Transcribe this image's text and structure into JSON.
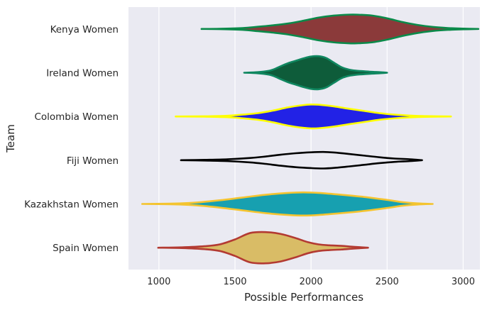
{
  "chart_data": {
    "type": "violin",
    "orientation": "horizontal",
    "xlabel": "Possible Performances",
    "ylabel": "Team",
    "xlim": [
      800,
      3110
    ],
    "xticks": [
      1000,
      1500,
      2000,
      2500,
      3000
    ],
    "grid": true,
    "background": "#eaeaf2",
    "categories": [
      "Kenya Women",
      "Ireland Women",
      "Colombia Women",
      "Fiji Women",
      "Kazakhstan Women",
      "Spain Women"
    ],
    "series": [
      {
        "name": "Kenya Women",
        "fill": "#8b3a3a",
        "stroke": "#0b8a4a",
        "profile": [
          [
            1280,
            0.0
          ],
          [
            1400,
            0.01
          ],
          [
            1550,
            0.05
          ],
          [
            1650,
            0.12
          ],
          [
            1750,
            0.2
          ],
          [
            1850,
            0.3
          ],
          [
            1950,
            0.45
          ],
          [
            2050,
            0.62
          ],
          [
            2150,
            0.73
          ],
          [
            2250,
            0.78
          ],
          [
            2300,
            0.78
          ],
          [
            2400,
            0.73
          ],
          [
            2500,
            0.58
          ],
          [
            2600,
            0.38
          ],
          [
            2700,
            0.22
          ],
          [
            2800,
            0.11
          ],
          [
            2900,
            0.05
          ],
          [
            3000,
            0.02
          ],
          [
            3100,
            0.0
          ]
        ]
      },
      {
        "name": "Ireland Women",
        "fill": "#0e5c3a",
        "stroke": "#108760",
        "profile": [
          [
            1560,
            0.0
          ],
          [
            1650,
            0.03
          ],
          [
            1720,
            0.1
          ],
          [
            1760,
            0.2
          ],
          [
            1800,
            0.35
          ],
          [
            1850,
            0.52
          ],
          [
            1900,
            0.65
          ],
          [
            1950,
            0.78
          ],
          [
            2000,
            0.88
          ],
          [
            2050,
            0.9
          ],
          [
            2100,
            0.8
          ],
          [
            2150,
            0.55
          ],
          [
            2200,
            0.3
          ],
          [
            2250,
            0.17
          ],
          [
            2300,
            0.11
          ],
          [
            2350,
            0.08
          ],
          [
            2400,
            0.05
          ],
          [
            2450,
            0.03
          ],
          [
            2500,
            0.0
          ]
        ]
      },
      {
        "name": "Colombia Women",
        "fill": "#2222e6",
        "stroke": "#ffff00",
        "profile": [
          [
            1110,
            0.0
          ],
          [
            1300,
            0.01
          ],
          [
            1450,
            0.04
          ],
          [
            1550,
            0.1
          ],
          [
            1650,
            0.18
          ],
          [
            1750,
            0.32
          ],
          [
            1850,
            0.5
          ],
          [
            1950,
            0.62
          ],
          [
            2000,
            0.65
          ],
          [
            2050,
            0.64
          ],
          [
            2150,
            0.55
          ],
          [
            2250,
            0.42
          ],
          [
            2350,
            0.3
          ],
          [
            2450,
            0.18
          ],
          [
            2550,
            0.1
          ],
          [
            2650,
            0.05
          ],
          [
            2750,
            0.02
          ],
          [
            2920,
            0.0
          ]
        ]
      },
      {
        "name": "Fiji Women",
        "fill": "#eaeaf2",
        "stroke": "#000000",
        "profile": [
          [
            1145,
            0.0
          ],
          [
            1300,
            0.02
          ],
          [
            1450,
            0.05
          ],
          [
            1600,
            0.12
          ],
          [
            1700,
            0.2
          ],
          [
            1800,
            0.3
          ],
          [
            1900,
            0.38
          ],
          [
            2000,
            0.43
          ],
          [
            2080,
            0.45
          ],
          [
            2150,
            0.42
          ],
          [
            2250,
            0.34
          ],
          [
            2350,
            0.25
          ],
          [
            2450,
            0.16
          ],
          [
            2550,
            0.09
          ],
          [
            2650,
            0.05
          ],
          [
            2730,
            0.0
          ]
        ]
      },
      {
        "name": "Kazakhstan Women",
        "fill": "#17a0b0",
        "stroke": "#f4c430",
        "profile": [
          [
            890,
            0.0
          ],
          [
            1100,
            0.02
          ],
          [
            1250,
            0.08
          ],
          [
            1400,
            0.2
          ],
          [
            1550,
            0.35
          ],
          [
            1700,
            0.5
          ],
          [
            1850,
            0.6
          ],
          [
            1950,
            0.63
          ],
          [
            2050,
            0.6
          ],
          [
            2200,
            0.5
          ],
          [
            2350,
            0.38
          ],
          [
            2500,
            0.22
          ],
          [
            2600,
            0.1
          ],
          [
            2700,
            0.03
          ],
          [
            2800,
            0.0
          ]
        ]
      },
      {
        "name": "Spain Women",
        "fill": "#d9bc66",
        "stroke": "#b33a32",
        "profile": [
          [
            995,
            0.0
          ],
          [
            1150,
            0.02
          ],
          [
            1300,
            0.08
          ],
          [
            1400,
            0.18
          ],
          [
            1500,
            0.45
          ],
          [
            1600,
            0.8
          ],
          [
            1700,
            0.85
          ],
          [
            1800,
            0.75
          ],
          [
            1900,
            0.52
          ],
          [
            1980,
            0.3
          ],
          [
            2050,
            0.18
          ],
          [
            2120,
            0.13
          ],
          [
            2200,
            0.1
          ],
          [
            2280,
            0.05
          ],
          [
            2375,
            0.0
          ]
        ]
      }
    ]
  }
}
